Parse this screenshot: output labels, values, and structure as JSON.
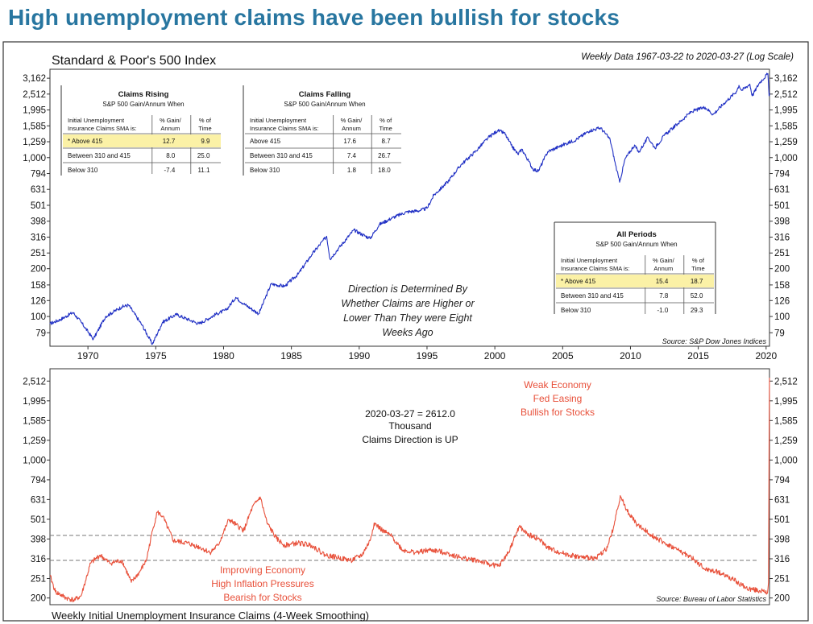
{
  "headline": "High unemployment claims have been bullish for stocks",
  "colors": {
    "headline": "#2876a0",
    "sp500_line": "#1f2fc4",
    "claims_line": "#e8503a",
    "highlight": "#fbf1a6",
    "frame": "#333333"
  },
  "top_panel": {
    "title": "Standard & Poor's 500 Index",
    "subtitle": "Weekly Data 1967-03-22 to 2020-03-27 (Log Scale)",
    "source": "Source: S&P Dow Jones Indices",
    "annotation": [
      "Direction is Determined By",
      "Whether Claims are Higher or",
      "Lower Than They were Eight",
      "Weeks Ago"
    ]
  },
  "bottom_panel": {
    "title": "Weekly Initial Unemployment Insurance Claims (4-Week Smoothing)",
    "source": "Source: Bureau of Labor Statistics",
    "latest_text": [
      "2020-03-27 = 2612.0",
      "Thousand",
      "Claims Direction is UP"
    ],
    "annotation_high": [
      "Weak Economy",
      "Fed Easing",
      "Bullish for Stocks"
    ],
    "annotation_low": [
      "Improving Economy",
      "High Inflation Pressures",
      "Bearish for Stocks"
    ]
  },
  "tables": [
    {
      "title": "Claims Rising",
      "subtitle": "S&P 500 Gain/Annum When",
      "headers": [
        "Initial Unemployment Insurance Claims SMA is:",
        "% Gain/ Annum",
        "% of Time"
      ],
      "rows": [
        [
          "* Above 415",
          "12.7",
          "9.9"
        ],
        [
          "Between 310 and 415",
          "8.0",
          "25.0"
        ],
        [
          "Below 310",
          "-7.4",
          "11.1"
        ]
      ]
    },
    {
      "title": "Claims Falling",
      "subtitle": "S&P 500 Gain/Annum When",
      "headers": [
        "Initial Unemployment Insurance Claims SMA is:",
        "% Gain/ Annum",
        "% of Time"
      ],
      "rows": [
        [
          "Above 415",
          "17.6",
          "8.7"
        ],
        [
          "Between 310 and 415",
          "7.4",
          "26.7"
        ],
        [
          "Below 310",
          "1.8",
          "18.0"
        ]
      ]
    },
    {
      "title": "All Periods",
      "subtitle": "S&P 500 Gain/Annum When",
      "headers": [
        "Initial Unemployment Insurance Claims SMA is:",
        "% Gain/ Annum",
        "% of Time"
      ],
      "rows": [
        [
          "* Above 415",
          "15.4",
          "18.7"
        ],
        [
          "Between 310 and 415",
          "7.8",
          "52.0"
        ],
        [
          "Below 310",
          "-1.0",
          "29.3"
        ]
      ]
    }
  ],
  "chart_data": [
    {
      "type": "line",
      "title": "Standard & Poor's 500 Index",
      "scale": "log",
      "x_range": [
        1967.2,
        2020.25
      ],
      "x_ticks": [
        "1970",
        "1975",
        "1980",
        "1985",
        "1990",
        "1995",
        "2000",
        "2005",
        "2010",
        "2015",
        "2020"
      ],
      "ylim": [
        65,
        3600
      ],
      "y_ticks": [
        "79",
        "100",
        "126",
        "158",
        "200",
        "251",
        "316",
        "398",
        "501",
        "631",
        "794",
        "1,000",
        "1,259",
        "1,585",
        "1,995",
        "2,512",
        "3,162"
      ],
      "series": [
        {
          "x": [
            1967.2,
            1968.0,
            1968.9,
            1969.5,
            1970.4,
            1971.3,
            1972.5,
            1973.0,
            1974.0,
            1974.75,
            1975.5,
            1976.5,
            1977.5,
            1978.2,
            1979.5,
            1980.2,
            1980.9,
            1981.5,
            1982.6,
            1983.5,
            1984.5,
            1985.5,
            1986.5,
            1987.6,
            1987.85,
            1988.5,
            1989.6,
            1990.8,
            1991.5,
            1992.5,
            1993.5,
            1994.5,
            1995.0,
            1995.5,
            1996.5,
            1997.5,
            1998.6,
            1999.5,
            2000.2,
            2000.7,
            2001.2,
            2001.7,
            2002.0,
            2002.8,
            2003.2,
            2003.9,
            2005.0,
            2006.0,
            2007.0,
            2007.8,
            2008.5,
            2008.9,
            2009.2,
            2009.6,
            2010.3,
            2010.6,
            2011.3,
            2011.8,
            2012.5,
            2013.5,
            2014.5,
            2015.5,
            2016.1,
            2016.9,
            2017.8,
            2018.0,
            2018.2,
            2018.8,
            2018.98,
            2019.5,
            2020.13,
            2020.22,
            2020.25
          ],
          "y": [
            90,
            96,
            106,
            92,
            72,
            100,
            115,
            118,
            88,
            67,
            92,
            103,
            95,
            90,
            104,
            110,
            132,
            120,
            104,
            160,
            155,
            185,
            245,
            320,
            230,
            270,
            350,
            310,
            380,
            420,
            455,
            465,
            480,
            580,
            700,
            900,
            1100,
            1330,
            1480,
            1430,
            1200,
            1050,
            1130,
            850,
            820,
            1090,
            1200,
            1300,
            1480,
            1540,
            1300,
            900,
            700,
            980,
            1200,
            1080,
            1340,
            1150,
            1380,
            1640,
            1950,
            2080,
            1870,
            2200,
            2600,
            2850,
            2650,
            2900,
            2450,
            2950,
            3380,
            2450,
            2540
          ]
        }
      ]
    },
    {
      "type": "line",
      "title": "Weekly Initial Unemployment Insurance Claims (4-Week Smoothing)",
      "scale": "log",
      "x_range": [
        1967.2,
        2020.25
      ],
      "ylim": [
        185,
        2900
      ],
      "y_ticks": [
        "200",
        "251",
        "316",
        "398",
        "501",
        "631",
        "794",
        "1,000",
        "1,259",
        "1,585",
        "1,995",
        "2,512"
      ],
      "reference_lines": [
        415,
        310
      ],
      "series": [
        {
          "x": [
            1967.2,
            1967.6,
            1968.4,
            1969.0,
            1969.5,
            1970.2,
            1970.9,
            1971.6,
            1972.5,
            1973.2,
            1973.8,
            1974.3,
            1974.8,
            1975.1,
            1975.5,
            1976.3,
            1977.3,
            1978.3,
            1979.0,
            1979.6,
            1980.4,
            1980.9,
            1981.5,
            1982.1,
            1982.7,
            1983.2,
            1983.9,
            1984.5,
            1985.5,
            1986.5,
            1987.5,
            1988.5,
            1989.4,
            1990.2,
            1990.8,
            1991.1,
            1991.7,
            1992.4,
            1993.2,
            1994.2,
            1995.3,
            1996.3,
            1997.5,
            1998.7,
            1999.7,
            2000.3,
            2001.0,
            2001.8,
            2002.4,
            2003.2,
            2003.9,
            2004.5,
            2005.5,
            2006.5,
            2007.5,
            2008.3,
            2008.8,
            2009.25,
            2009.7,
            2010.5,
            2011.5,
            2012.5,
            2013.5,
            2014.5,
            2015.5,
            2016.5,
            2017.5,
            2018.5,
            2019.5,
            2020.1,
            2020.18,
            2020.22,
            2020.25
          ],
          "y": [
            260,
            215,
            200,
            195,
            205,
            300,
            330,
            300,
            310,
            240,
            270,
            310,
            450,
            545,
            520,
            390,
            380,
            360,
            340,
            370,
            500,
            470,
            440,
            570,
            650,
            480,
            400,
            370,
            380,
            370,
            330,
            320,
            310,
            330,
            390,
            480,
            440,
            410,
            350,
            340,
            350,
            340,
            320,
            310,
            295,
            290,
            340,
            460,
            420,
            400,
            360,
            345,
            330,
            320,
            320,
            360,
            470,
            660,
            560,
            470,
            420,
            380,
            350,
            320,
            280,
            270,
            250,
            225,
            218,
            212,
            240,
            1200,
            2612
          ]
        }
      ]
    }
  ]
}
